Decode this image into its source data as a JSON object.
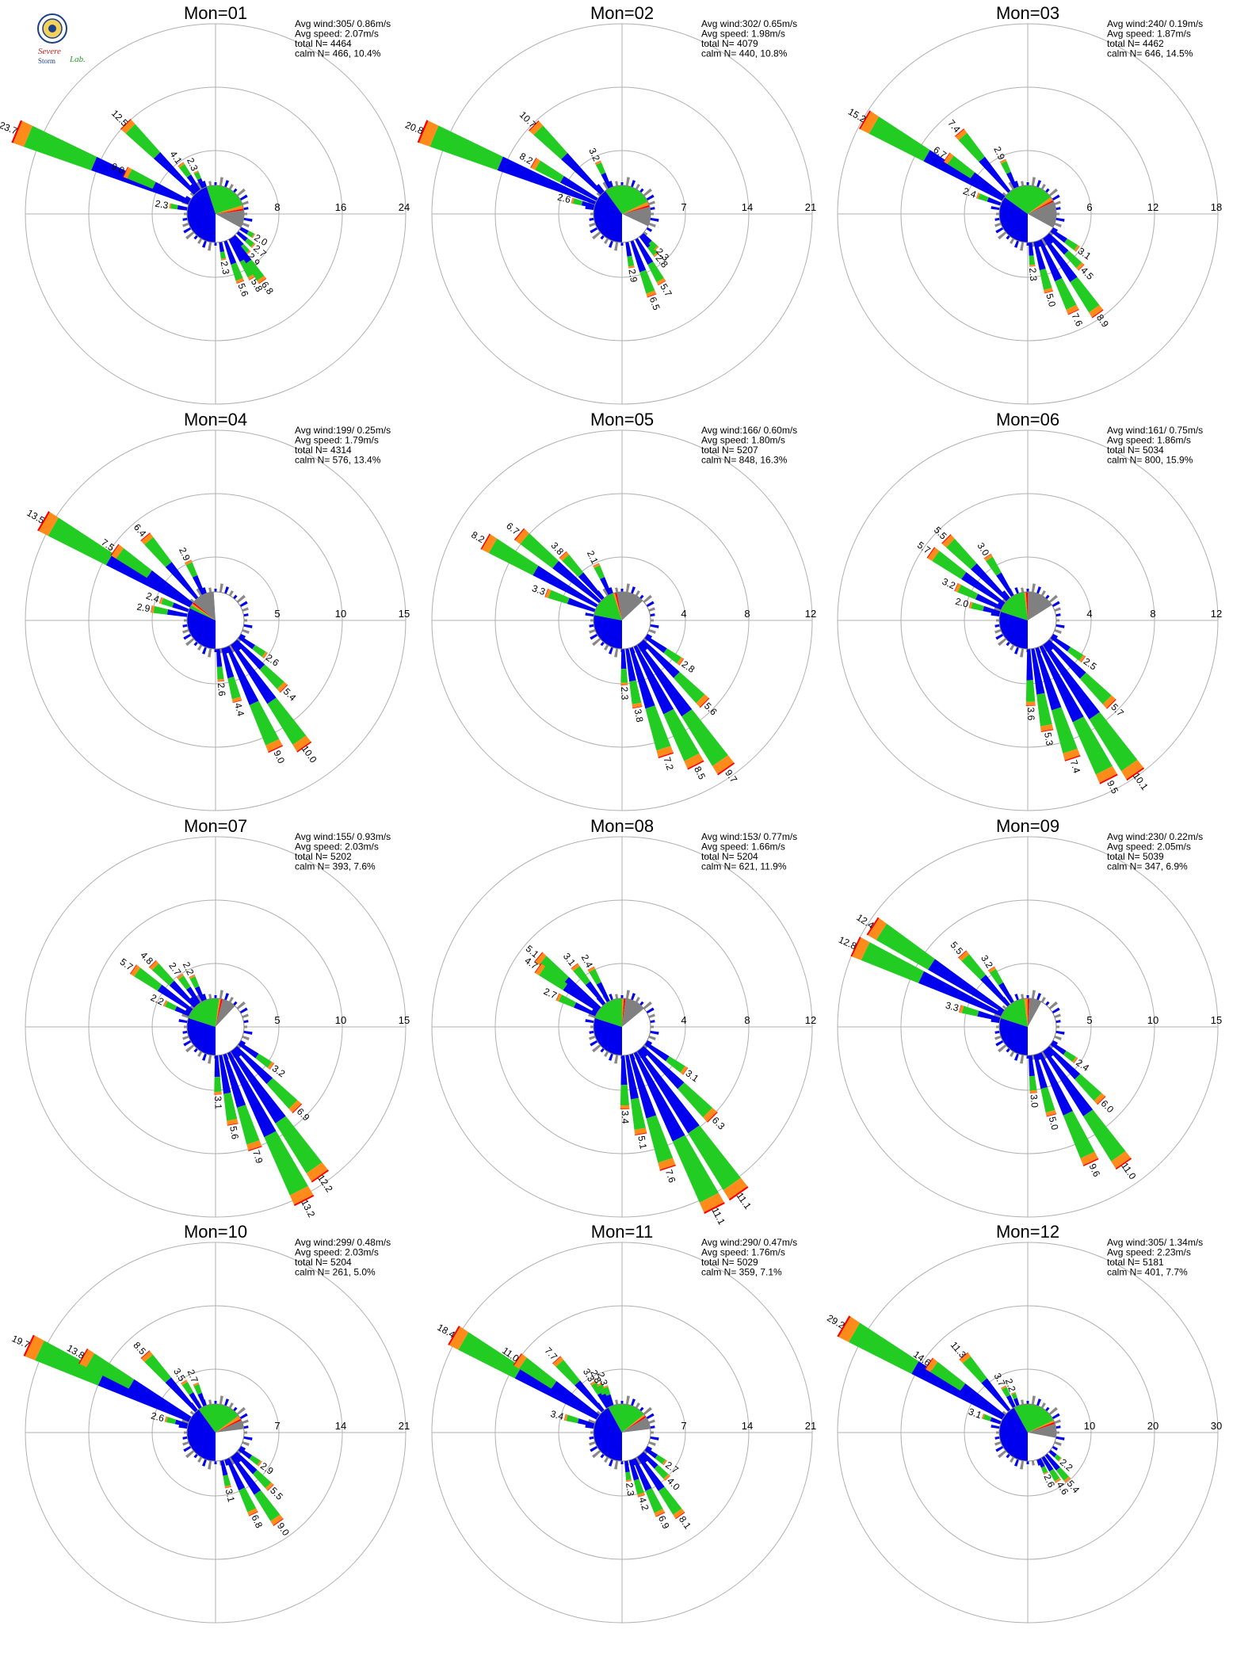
{
  "colors": {
    "background": "#ffffff",
    "ring": "#b0b0b0",
    "axis": "#b0b0b0",
    "speed_bin_1": "#0000ee",
    "speed_bin_2": "#22cc22",
    "speed_bin_3": "#ff8c1a",
    "speed_bin_4": "#ff0000",
    "pie_speed_1": "#0000ee",
    "pie_speed_2": "#22cc22",
    "pie_speed_3": "#ff8c1a",
    "pie_speed_4": "#ff0000",
    "pie_calm": "#808080",
    "pie_rest": "#ffffff",
    "calm_ring": "#808080"
  },
  "logo": {
    "text_1": "Severe",
    "text_2": "Storm",
    "text_3": "Lab.",
    "icon": "university-seal-icon"
  },
  "chart_data": [
    {
      "type": "polar-bar",
      "title": "Mon=01",
      "ring_ticks": [
        "8",
        "16",
        "24"
      ],
      "rmax": 24,
      "stats": {
        "avg_wind": "Avg wind:305/ 0.86m/s",
        "avg_speed": "Avg speed: 2.07m/s",
        "total": "total N=      4464",
        "calm": "calm N=    466,  10.4%"
      },
      "pie": [
        0.45,
        0.25,
        0.02,
        0.01,
        0.1
      ],
      "petals": [
        {
          "dir": 292.5,
          "value": 23.7,
          "label": "23.7"
        },
        {
          "dir": 315,
          "value": 12.5,
          "label": "12.5"
        },
        {
          "dir": 295,
          "value": 9.0,
          "label": "9.0"
        },
        {
          "dir": 325,
          "value": 4.1,
          "label": "4.1"
        },
        {
          "dir": 335,
          "value": 2.3,
          "label": "2.3"
        },
        {
          "dir": 280,
          "value": 2.3,
          "label": "2.3"
        },
        {
          "dir": 120,
          "value": 2.0,
          "label": "2.0"
        },
        {
          "dir": 130,
          "value": 2.7,
          "label": "2.7"
        },
        {
          "dir": 140,
          "value": 2.9,
          "label": "2.9"
        },
        {
          "dir": 150,
          "value": 5.8,
          "label": "5.8"
        },
        {
          "dir": 160,
          "value": 5.6,
          "label": "5.6"
        },
        {
          "dir": 170,
          "value": 2.3,
          "label": "2.3"
        },
        {
          "dir": 145,
          "value": 6.8,
          "label": "6.8"
        }
      ]
    },
    {
      "type": "polar-bar",
      "title": "Mon=02",
      "ring_ticks": [
        "7",
        "14",
        "21"
      ],
      "rmax": 21,
      "stats": {
        "avg_wind": "Avg wind:302/ 0.65m/s",
        "avg_speed": "Avg speed: 1.98m/s",
        "total": "total N=      4079",
        "calm": "calm N=    440,  10.8%"
      },
      "pie": [
        0.4,
        0.28,
        0.02,
        0.01,
        0.11
      ],
      "petals": [
        {
          "dir": 292.5,
          "value": 20.8,
          "label": "20.8"
        },
        {
          "dir": 315,
          "value": 10.7,
          "label": "10.7"
        },
        {
          "dir": 300,
          "value": 8.2,
          "label": "8.2"
        },
        {
          "dir": 285,
          "value": 2.6,
          "label": "2.6"
        },
        {
          "dir": 335,
          "value": 3.2,
          "label": "3.2"
        },
        {
          "dir": 140,
          "value": 2.8,
          "label": "2.8"
        },
        {
          "dir": 150,
          "value": 5.7,
          "label": "5.7"
        },
        {
          "dir": 160,
          "value": 6.5,
          "label": "6.5"
        },
        {
          "dir": 170,
          "value": 2.9,
          "label": "2.9"
        },
        {
          "dir": 135,
          "value": 2.3,
          "label": "2.3"
        }
      ]
    },
    {
      "type": "polar-bar",
      "title": "Mon=03",
      "ring_ticks": [
        "6",
        "12",
        "18"
      ],
      "rmax": 18,
      "stats": {
        "avg_wind": "Avg wind:240/ 0.19m/s",
        "avg_speed": "Avg speed: 1.87m/s",
        "total": "total N=      4462",
        "calm": "calm N=    646,  14.5%"
      },
      "pie": [
        0.35,
        0.3,
        0.02,
        0.01,
        0.15
      ],
      "petals": [
        {
          "dir": 300,
          "value": 15.2,
          "label": "15.2"
        },
        {
          "dir": 320,
          "value": 7.4,
          "label": "7.4"
        },
        {
          "dir": 305,
          "value": 6.7,
          "label": "6.7"
        },
        {
          "dir": 290,
          "value": 2.4,
          "label": "2.4"
        },
        {
          "dir": 335,
          "value": 2.9,
          "label": "2.9"
        },
        {
          "dir": 125,
          "value": 3.1,
          "label": "3.1"
        },
        {
          "dir": 135,
          "value": 4.5,
          "label": "4.5"
        },
        {
          "dir": 145,
          "value": 8.9,
          "label": "8.9"
        },
        {
          "dir": 155,
          "value": 7.6,
          "label": "7.6"
        },
        {
          "dir": 165,
          "value": 5.0,
          "label": "5.0"
        },
        {
          "dir": 175,
          "value": 2.3,
          "label": "2.3"
        }
      ]
    },
    {
      "type": "polar-bar",
      "title": "Mon=04",
      "ring_ticks": [
        "5",
        "10",
        "15"
      ],
      "rmax": 15,
      "stats": {
        "avg_wind": "Avg wind:199/ 0.25m/s",
        "avg_speed": "Avg speed: 1.79m/s",
        "total": "total N=      4314",
        "calm": "calm N=    576,  13.4%"
      },
      "pie": [
        0.32,
        0.02,
        0.01,
        0.01,
        0.13
      ],
      "petals": [
        {
          "dir": 300,
          "value": 13.5,
          "label": "13.5"
        },
        {
          "dir": 320,
          "value": 6.4,
          "label": "6.4"
        },
        {
          "dir": 305,
          "value": 7.5,
          "label": "7.5"
        },
        {
          "dir": 335,
          "value": 2.9,
          "label": "2.9"
        },
        {
          "dir": 290,
          "value": 2.4,
          "label": "2.4"
        },
        {
          "dir": 280,
          "value": 2.9,
          "label": "2.9"
        },
        {
          "dir": 125,
          "value": 2.6,
          "label": "2.6"
        },
        {
          "dir": 135,
          "value": 5.4,
          "label": "5.4"
        },
        {
          "dir": 145,
          "value": 10.0,
          "label": "10.0"
        },
        {
          "dir": 155,
          "value": 9.0,
          "label": "9.0"
        },
        {
          "dir": 165,
          "value": 4.4,
          "label": "4.4"
        },
        {
          "dir": 175,
          "value": 2.6,
          "label": "2.6"
        }
      ]
    },
    {
      "type": "polar-bar",
      "title": "Mon=05",
      "ring_ticks": [
        "4",
        "8",
        "12"
      ],
      "rmax": 12,
      "stats": {
        "avg_wind": "Avg wind:166/ 0.60m/s",
        "avg_speed": "Avg speed: 1.80m/s",
        "total": "total N=      5207",
        "calm": "calm N=    848,  16.3%"
      },
      "pie": [
        0.28,
        0.17,
        0.01,
        0.01,
        0.16
      ],
      "petals": [
        {
          "dir": 300,
          "value": 8.2,
          "label": "8.2"
        },
        {
          "dir": 310,
          "value": 6.7,
          "label": "6.7"
        },
        {
          "dir": 318,
          "value": 3.8,
          "label": "3.8"
        },
        {
          "dir": 290,
          "value": 3.3,
          "label": "3.3"
        },
        {
          "dir": 335,
          "value": 2.1,
          "label": "2.1"
        },
        {
          "dir": 125,
          "value": 2.8,
          "label": "2.8"
        },
        {
          "dir": 135,
          "value": 5.6,
          "label": "5.6"
        },
        {
          "dir": 145,
          "value": 9.7,
          "label": "9.7"
        },
        {
          "dir": 153,
          "value": 8.5,
          "label": "8.5"
        },
        {
          "dir": 162,
          "value": 7.2,
          "label": "7.2"
        },
        {
          "dir": 170,
          "value": 3.8,
          "label": "3.8"
        },
        {
          "dir": 178,
          "value": 2.3,
          "label": "2.3"
        }
      ]
    },
    {
      "type": "polar-bar",
      "title": "Mon=06",
      "ring_ticks": [
        "4",
        "8",
        "12"
      ],
      "rmax": 12,
      "stats": {
        "avg_wind": "Avg wind:161/ 0.75m/s",
        "avg_speed": "Avg speed: 1.86m/s",
        "total": "total N=      5034",
        "calm": "calm N=    800,  15.9%"
      },
      "pie": [
        0.3,
        0.18,
        0.01,
        0.01,
        0.16
      ],
      "petals": [
        {
          "dir": 305,
          "value": 5.7,
          "label": "5.7"
        },
        {
          "dir": 315,
          "value": 5.5,
          "label": "5.5"
        },
        {
          "dir": 328,
          "value": 3.0,
          "label": "3.0"
        },
        {
          "dir": 295,
          "value": 3.2,
          "label": "3.2"
        },
        {
          "dir": 285,
          "value": 2.0,
          "label": "2.0"
        },
        {
          "dir": 125,
          "value": 2.5,
          "label": "2.5"
        },
        {
          "dir": 135,
          "value": 5.7,
          "label": "5.7"
        },
        {
          "dir": 145,
          "value": 10.1,
          "label": "10.1"
        },
        {
          "dir": 153,
          "value": 9.5,
          "label": "9.5"
        },
        {
          "dir": 162,
          "value": 7.4,
          "label": "7.4"
        },
        {
          "dir": 170,
          "value": 5.3,
          "label": "5.3"
        },
        {
          "dir": 178,
          "value": 3.6,
          "label": "3.6"
        }
      ]
    },
    {
      "type": "polar-bar",
      "title": "Mon=07",
      "ring_ticks": [
        "5",
        "10",
        "15"
      ],
      "rmax": 15,
      "stats": {
        "avg_wind": "Avg wind:155/ 0.93m/s",
        "avg_speed": "Avg speed: 2.03m/s",
        "total": "total N=      5202",
        "calm": "calm N=    393,   7.6%"
      },
      "pie": [
        0.3,
        0.22,
        0.01,
        0.01,
        0.08
      ],
      "petals": [
        {
          "dir": 305,
          "value": 5.7,
          "label": "5.7"
        },
        {
          "dir": 315,
          "value": 4.8,
          "label": "4.8"
        },
        {
          "dir": 325,
          "value": 2.7,
          "label": "2.7"
        },
        {
          "dir": 335,
          "value": 2.2,
          "label": "2.2"
        },
        {
          "dir": 295,
          "value": 2.2,
          "label": "2.2"
        },
        {
          "dir": 125,
          "value": 3.2,
          "label": "3.2"
        },
        {
          "dir": 135,
          "value": 6.9,
          "label": "6.9"
        },
        {
          "dir": 145,
          "value": 12.2,
          "label": "12.2"
        },
        {
          "dir": 153,
          "value": 13.2,
          "label": "13.2"
        },
        {
          "dir": 162,
          "value": 7.9,
          "label": "7.9"
        },
        {
          "dir": 170,
          "value": 5.6,
          "label": "5.6"
        },
        {
          "dir": 178,
          "value": 3.1,
          "label": "3.1"
        }
      ]
    },
    {
      "type": "polar-bar",
      "title": "Mon=08",
      "ring_ticks": [
        "4",
        "8",
        "12"
      ],
      "rmax": 12,
      "stats": {
        "avg_wind": "Avg wind:153/ 0.77m/s",
        "avg_speed": "Avg speed: 1.66m/s",
        "total": "total N=      5204",
        "calm": "calm N=    621,  11.9%"
      },
      "pie": [
        0.3,
        0.2,
        0.01,
        0.01,
        0.12
      ],
      "petals": [
        {
          "dir": 310,
          "value": 5.1,
          "label": "5.1"
        },
        {
          "dir": 305,
          "value": 4.7,
          "label": "4.7"
        },
        {
          "dir": 322,
          "value": 3.1,
          "label": "3.1"
        },
        {
          "dir": 332,
          "value": 2.4,
          "label": "2.4"
        },
        {
          "dir": 295,
          "value": 2.7,
          "label": "2.7"
        },
        {
          "dir": 125,
          "value": 3.1,
          "label": "3.1"
        },
        {
          "dir": 135,
          "value": 6.3,
          "label": "6.3"
        },
        {
          "dir": 145,
          "value": 11.1,
          "label": "11.1"
        },
        {
          "dir": 153,
          "value": 11.1,
          "label": "11.1"
        },
        {
          "dir": 162,
          "value": 7.6,
          "label": "7.6"
        },
        {
          "dir": 170,
          "value": 5.1,
          "label": "5.1"
        },
        {
          "dir": 178,
          "value": 3.4,
          "label": "3.4"
        }
      ]
    },
    {
      "type": "polar-bar",
      "title": "Mon=09",
      "ring_ticks": [
        "5",
        "10",
        "15"
      ],
      "rmax": 15,
      "stats": {
        "avg_wind": "Avg wind:230/ 0.22m/s",
        "avg_speed": "Avg speed: 2.05m/s",
        "total": "total N=      5039",
        "calm": "calm N=    347,   6.9%"
      },
      "pie": [
        0.3,
        0.18,
        0.02,
        0.01,
        0.07
      ],
      "petals": [
        {
          "dir": 295,
          "value": 12.8,
          "label": "12.8"
        },
        {
          "dir": 303,
          "value": 12.4,
          "label": "12.4"
        },
        {
          "dir": 318,
          "value": 5.5,
          "label": "5.5"
        },
        {
          "dir": 328,
          "value": 3.2,
          "label": "3.2"
        },
        {
          "dir": 285,
          "value": 3.3,
          "label": "3.3"
        },
        {
          "dir": 125,
          "value": 2.4,
          "label": "2.4"
        },
        {
          "dir": 135,
          "value": 6.0,
          "label": "6.0"
        },
        {
          "dir": 145,
          "value": 11.0,
          "label": "11.0"
        },
        {
          "dir": 155,
          "value": 9.6,
          "label": "9.6"
        },
        {
          "dir": 165,
          "value": 5.0,
          "label": "5.0"
        },
        {
          "dir": 175,
          "value": 3.0,
          "label": "3.0"
        }
      ]
    },
    {
      "type": "polar-bar",
      "title": "Mon=10",
      "ring_ticks": [
        "7",
        "14",
        "21"
      ],
      "rmax": 21,
      "stats": {
        "avg_wind": "Avg wind:299/ 0.48m/s",
        "avg_speed": "Avg speed: 2.03m/s",
        "total": "total N=      5204",
        "calm": "calm N=    261,   5.0%"
      },
      "pie": [
        0.4,
        0.25,
        0.02,
        0.01,
        0.05
      ],
      "petals": [
        {
          "dir": 295,
          "value": 19.7,
          "label": "19.7"
        },
        {
          "dir": 300,
          "value": 13.8,
          "label": "13.8"
        },
        {
          "dir": 318,
          "value": 8.5,
          "label": "8.5"
        },
        {
          "dir": 328,
          "value": 3.5,
          "label": "3.5"
        },
        {
          "dir": 338,
          "value": 2.7,
          "label": "2.7"
        },
        {
          "dir": 285,
          "value": 2.6,
          "label": "2.6"
        },
        {
          "dir": 125,
          "value": 2.9,
          "label": "2.9"
        },
        {
          "dir": 135,
          "value": 5.5,
          "label": "5.5"
        },
        {
          "dir": 145,
          "value": 9.0,
          "label": "9.0"
        },
        {
          "dir": 155,
          "value": 6.8,
          "label": "6.8"
        },
        {
          "dir": 167,
          "value": 3.1,
          "label": "3.1"
        }
      ]
    },
    {
      "type": "polar-bar",
      "title": "Mon=11",
      "ring_ticks": [
        "7",
        "14",
        "21"
      ],
      "rmax": 21,
      "stats": {
        "avg_wind": "Avg wind:290/ 0.47m/s",
        "avg_speed": "Avg speed: 1.76m/s",
        "total": "total N=      5029",
        "calm": "calm N=    359,   7.1%"
      },
      "pie": [
        0.42,
        0.22,
        0.01,
        0.01,
        0.07
      ],
      "petals": [
        {
          "dir": 300,
          "value": 18.4,
          "label": "18.4"
        },
        {
          "dir": 305,
          "value": 11.0,
          "label": "11.0"
        },
        {
          "dir": 318,
          "value": 7.7,
          "label": "7.7"
        },
        {
          "dir": 330,
          "value": 3.3,
          "label": "3.3"
        },
        {
          "dir": 335,
          "value": 2.8,
          "label": "2.8"
        },
        {
          "dir": 340,
          "value": 2.3,
          "label": "2.3"
        },
        {
          "dir": 285,
          "value": 3.4,
          "label": "3.4"
        },
        {
          "dir": 125,
          "value": 2.7,
          "label": "2.7"
        },
        {
          "dir": 135,
          "value": 4.0,
          "label": "4.0"
        },
        {
          "dir": 145,
          "value": 8.1,
          "label": "8.1"
        },
        {
          "dir": 155,
          "value": 6.9,
          "label": "6.9"
        },
        {
          "dir": 163,
          "value": 4.2,
          "label": "4.2"
        },
        {
          "dir": 172,
          "value": 2.3,
          "label": "2.3"
        }
      ]
    },
    {
      "type": "polar-bar",
      "title": "Mon=12",
      "ring_ticks": [
        "10",
        "20",
        "30"
      ],
      "rmax": 30,
      "stats": {
        "avg_wind": "Avg wind:305/ 1.34m/s",
        "avg_speed": "Avg speed: 2.23m/s",
        "total": "total N=      5181",
        "calm": "calm N=    401,   7.7%"
      },
      "pie": [
        0.42,
        0.26,
        0.01,
        0.01,
        0.08
      ],
      "petals": [
        {
          "dir": 300,
          "value": 29.2,
          "label": "29.2"
        },
        {
          "dir": 305,
          "value": 14.6,
          "label": "14.6"
        },
        {
          "dir": 320,
          "value": 11.3,
          "label": "11.3"
        },
        {
          "dir": 332,
          "value": 3.7,
          "label": "3.7"
        },
        {
          "dir": 340,
          "value": 2.2,
          "label": "2.2"
        },
        {
          "dir": 290,
          "value": 3.1,
          "label": "3.1"
        },
        {
          "dir": 130,
          "value": 2.2,
          "label": "2.2"
        },
        {
          "dir": 140,
          "value": 5.4,
          "label": "5.4"
        },
        {
          "dir": 148,
          "value": 4.6,
          "label": "4.6"
        },
        {
          "dir": 156,
          "value": 2.6,
          "label": "2.6"
        }
      ]
    }
  ]
}
